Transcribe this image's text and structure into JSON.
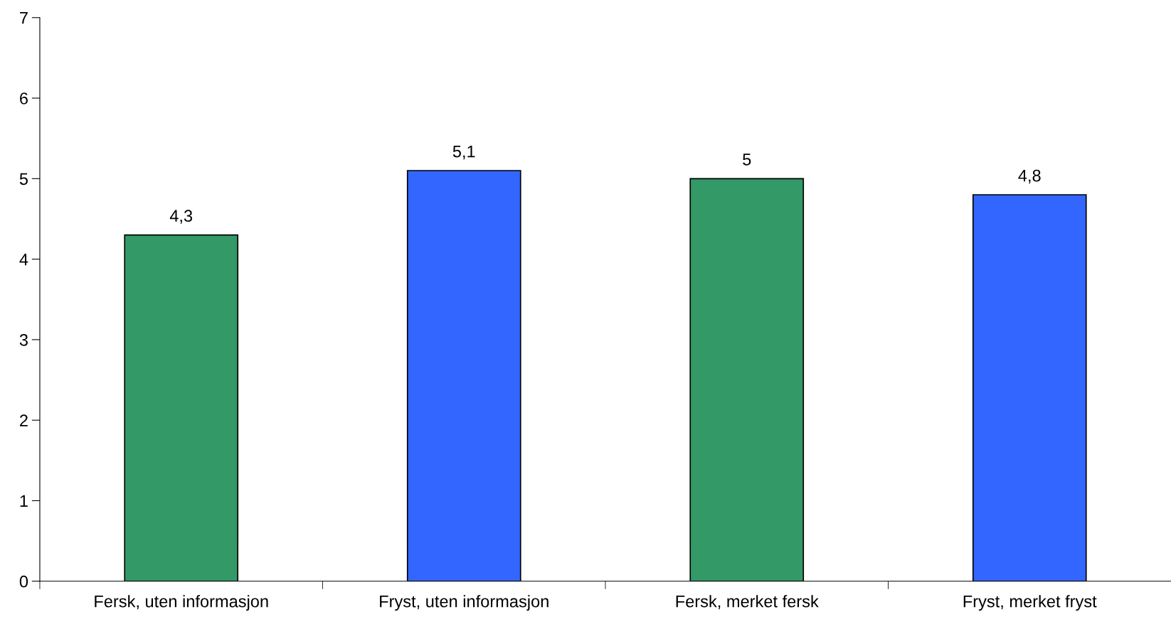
{
  "chart_data": {
    "type": "bar",
    "categories": [
      "Fersk, uten informasjon",
      "Fryst, uten informasjon",
      "Fersk, merket fersk",
      "Fryst, merket fryst"
    ],
    "values": [
      4.3,
      5.1,
      5,
      4.8
    ],
    "colors": [
      "#339966",
      "#3366ff",
      "#339966",
      "#3366ff"
    ],
    "value_labels": [
      "4,3",
      "5,1",
      "5",
      "4,8"
    ],
    "ylim": [
      0,
      7
    ],
    "yticks": [
      0,
      1,
      2,
      3,
      4,
      5,
      6,
      7
    ],
    "grid": false,
    "legend": false
  }
}
